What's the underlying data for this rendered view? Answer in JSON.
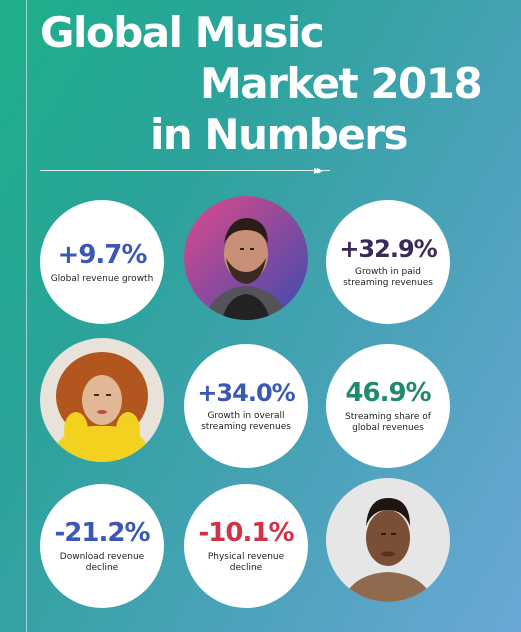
{
  "title": {
    "line1": "Global Music",
    "line2": "Market 2018",
    "line3": "in Numbers"
  },
  "divider_arrows": "▸▸",
  "colors": {
    "background_start": "#1fb08a",
    "background_end": "#6aa8d6",
    "blue": "#3b58b4",
    "purple": "#3a2a58",
    "teal": "#1f8b6c",
    "red": "#d23146"
  },
  "stats": [
    {
      "value": "+9.7%",
      "label": "Global revenue growth",
      "color": "#3b58b4"
    },
    {
      "value": "+32.9%",
      "label": "Growth in paid streaming revenues",
      "color": "#3a2a58"
    },
    {
      "value": "+34.0%",
      "label": "Growth in overall streaming revenues",
      "color": "#3b58b4"
    },
    {
      "value": "46.9%",
      "label": "Streaming share of global revenues",
      "color": "#1f8b6c"
    },
    {
      "value": "-21.2%",
      "label": "Download revenue decline",
      "color": "#3b58b4"
    },
    {
      "value": "-10.1%",
      "label": "Physical revenue decline",
      "color": "#d23146"
    }
  ]
}
